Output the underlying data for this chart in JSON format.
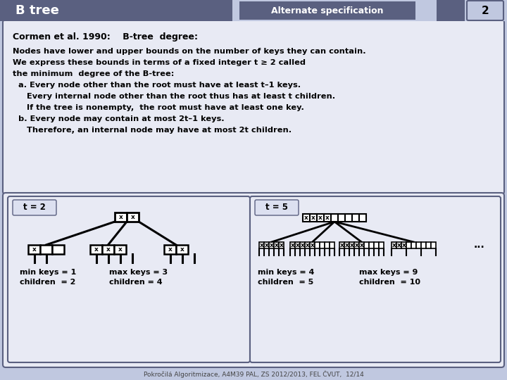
{
  "bg_color": "#c0c8e0",
  "header_color": "#5a6080",
  "header_text": "B tree",
  "header_text_color": "#ffffff",
  "alt_spec_text": "Alternate specification",
  "page_num": "2",
  "cormen_line": "Cormen et al. 1990:    B-tree  degree:",
  "main_text_lines": [
    "Nodes have lower and upper bounds on the number of keys they can contain.",
    "We express these bounds in terms of a fixed integer t ≥ 2 called",
    "the minimum  degree of the B-tree:",
    "  a. Every node other than the root must have at least t–1 keys.",
    "     Every internal node other than the root thus has at least t children.",
    "     If the tree is nonempty,  the root must have at least one key.",
    "  b. Every node may contain at most 2t–1 keys.",
    "     Therefore, an internal node may have at most 2t children."
  ],
  "box_border_color": "#5a6080",
  "t2_label": "t = 2",
  "t5_label": "t = 5",
  "t2_min_keys": "min keys = 1",
  "t2_max_keys": "max keys = 3",
  "t2_min_children": "children  = 2",
  "t2_max_children": "children = 4",
  "t5_min_keys": "min keys = 4",
  "t5_max_keys": "max keys = 9",
  "t5_min_children": "children  = 5",
  "t5_max_children": "children  = 10",
  "footer_text": "Pokročilá Algoritmizace, A4M39 PAL, ZS 2012/2013, FEL ČVUT,  12/14",
  "text_color": "#000000",
  "label_bg": "#dce0f0",
  "content_bg": "#e8eaf4"
}
